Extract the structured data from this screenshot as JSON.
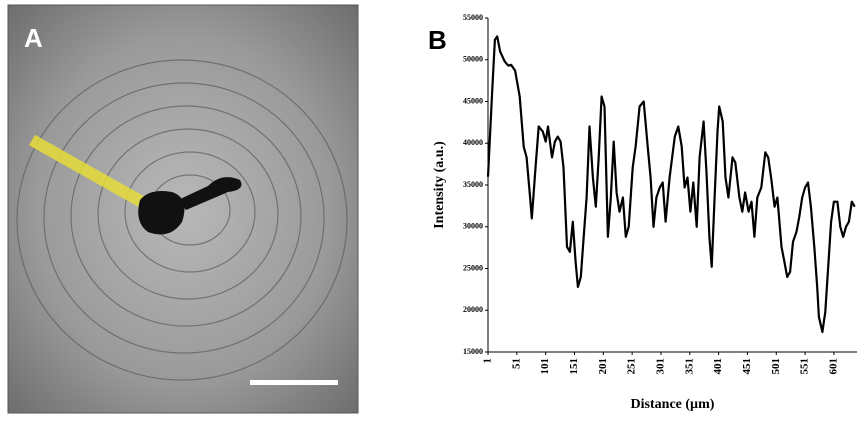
{
  "panel_a": {
    "label": "A"
  },
  "chart_data": {
    "type": "line",
    "panel_label": "B",
    "x_label": "Distance (µm)",
    "y_label": "Intensity (a.u.)",
    "color": "#000000",
    "grid": false,
    "x": [
      1,
      8,
      13,
      17,
      22,
      30,
      36,
      41,
      48,
      56,
      63,
      68,
      74,
      77,
      84,
      89,
      96,
      101,
      105,
      112,
      117,
      122,
      127,
      132,
      138,
      143,
      148,
      153,
      157,
      162,
      167,
      172,
      177,
      183,
      188,
      193,
      198,
      203,
      209,
      214,
      219,
      224,
      229,
      235,
      240,
      245,
      252,
      257,
      264,
      271,
      278,
      283,
      288,
      293,
      299,
      304,
      309,
      316,
      325,
      331,
      337,
      342,
      347,
      352,
      357,
      363,
      368,
      375,
      380,
      385,
      389,
      394,
      399,
      402,
      408,
      413,
      418,
      425,
      430,
      437,
      442,
      447,
      453,
      458,
      463,
      468,
      475,
      482,
      487,
      492,
      498,
      503,
      510,
      515,
      520,
      525,
      530,
      536,
      541,
      546,
      551,
      556,
      561,
      567,
      572,
      575,
      581,
      586,
      591,
      596,
      601,
      607,
      612,
      617,
      622,
      627,
      632,
      637
    ],
    "values": [
      36000,
      45800,
      52400,
      52800,
      51000,
      49800,
      49300,
      49400,
      48700,
      45600,
      39600,
      38300,
      33500,
      31000,
      37700,
      42000,
      41400,
      40200,
      42000,
      38300,
      40200,
      40800,
      40200,
      37100,
      27600,
      27000,
      30600,
      25800,
      22800,
      24000,
      28800,
      33500,
      42000,
      35900,
      32400,
      38300,
      45600,
      44400,
      28800,
      33500,
      40200,
      34100,
      31800,
      33500,
      28800,
      30000,
      37100,
      39600,
      44400,
      45000,
      39600,
      35900,
      30000,
      33500,
      34700,
      35300,
      30600,
      35900,
      40800,
      42000,
      39600,
      34700,
      35900,
      31800,
      35300,
      30000,
      38300,
      42600,
      36500,
      28800,
      25200,
      33500,
      41400,
      44400,
      42600,
      35900,
      33500,
      38300,
      37700,
      33500,
      31800,
      34100,
      31800,
      33000,
      28800,
      33500,
      34700,
      38900,
      38300,
      35900,
      32400,
      33500,
      27600,
      25800,
      24000,
      24600,
      28200,
      29400,
      31200,
      33500,
      34700,
      35300,
      32400,
      27600,
      22800,
      19200,
      17400,
      19800,
      25200,
      30600,
      33000,
      33000,
      30000,
      28800,
      30000,
      30600,
      33000,
      32400
    ],
    "xlim": [
      1,
      641
    ],
    "xticks": [
      1,
      51,
      101,
      151,
      201,
      251,
      301,
      351,
      401,
      451,
      501,
      551,
      601
    ],
    "ylim": [
      15000,
      55000
    ],
    "yticks": [
      15000,
      20000,
      25000,
      30000,
      35000,
      40000,
      45000,
      50000,
      55000
    ]
  }
}
